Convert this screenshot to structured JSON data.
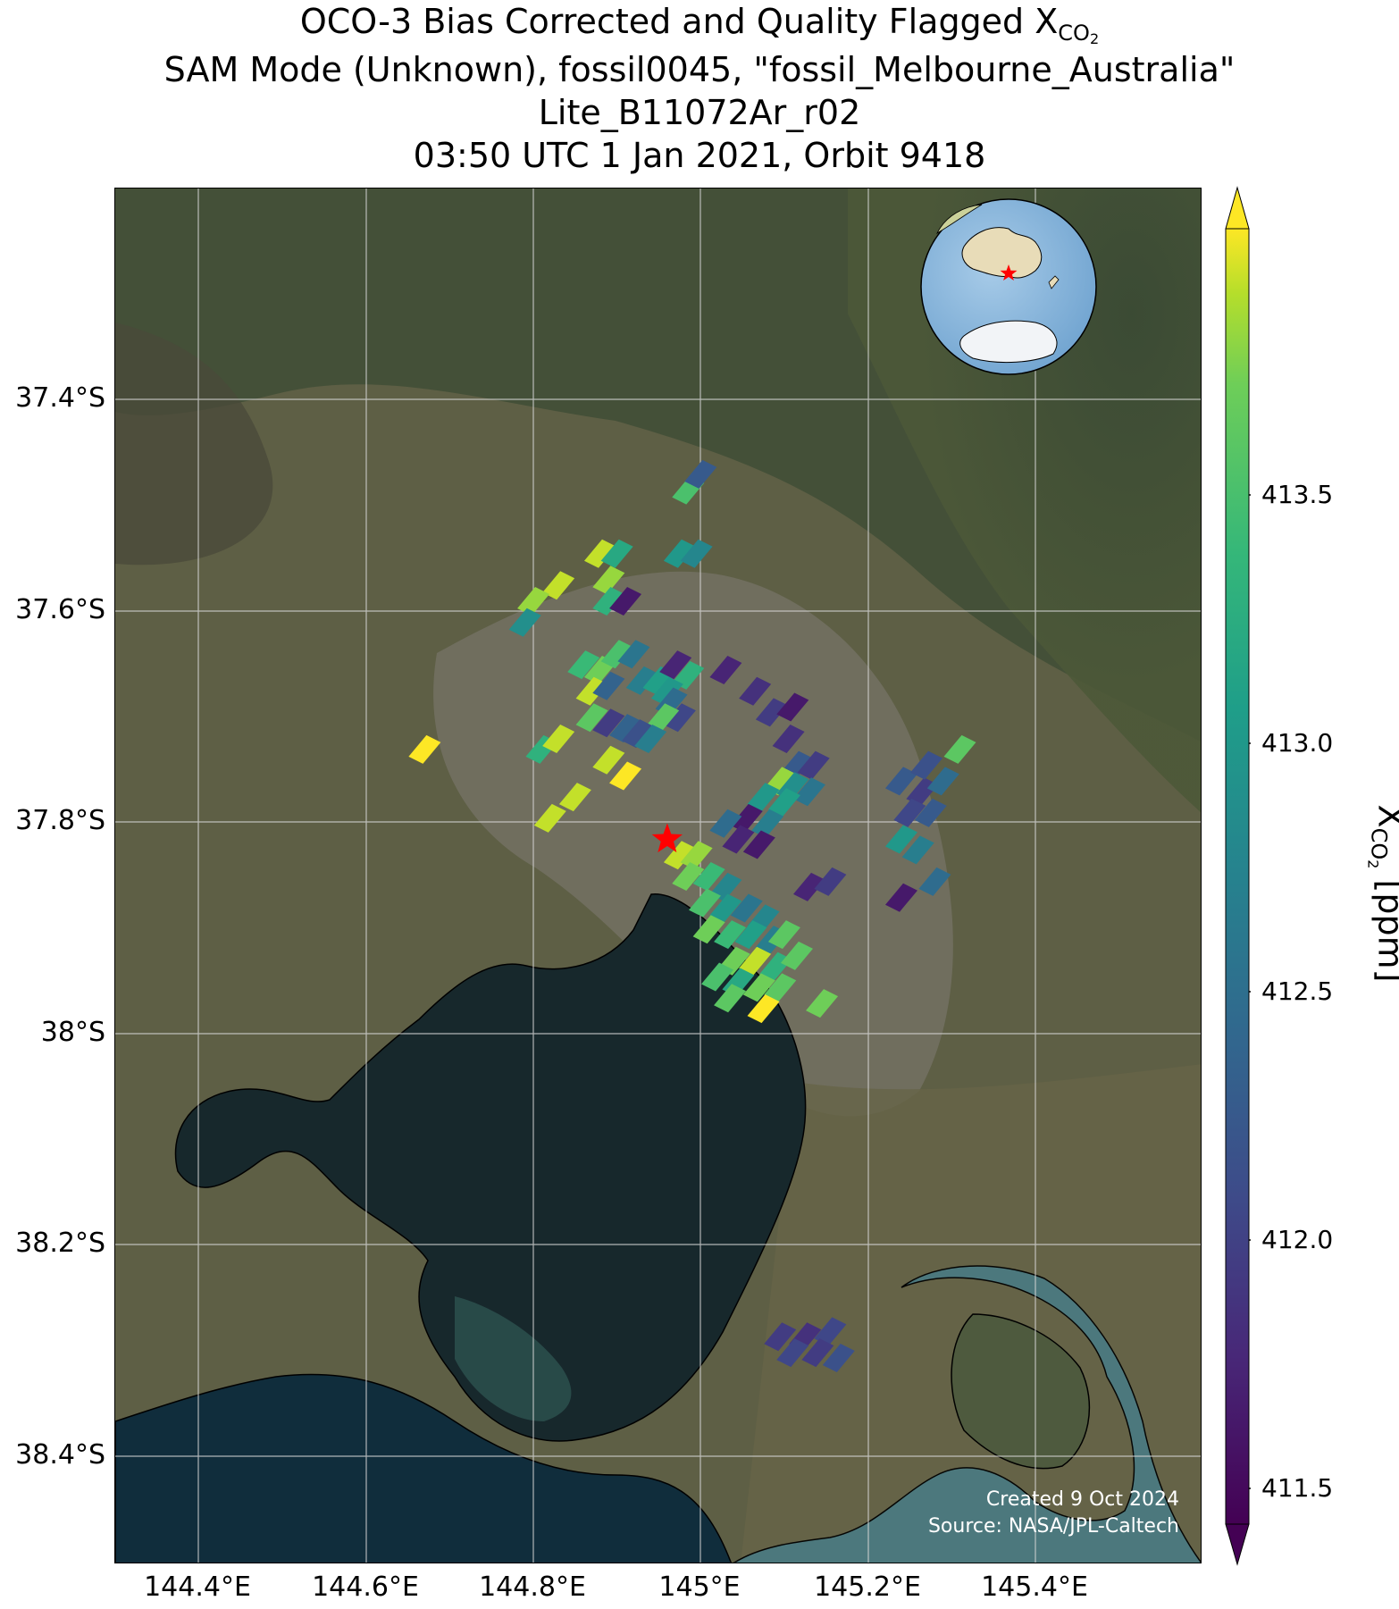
{
  "title": {
    "line1_prefix": "OCO-3 Bias Corrected and Quality Flagged X",
    "line1_sub_main": "CO",
    "line1_sub_sub": "2",
    "line2": "SAM Mode (Unknown), fossil0045, \"fossil_Melbourne_Australia\"",
    "line3": "Lite_B11072Ar_r02",
    "line4": "03:50 UTC 1 Jan 2021, Orbit 9418"
  },
  "axes": {
    "lat_ticks": [
      "37.4°S",
      "37.6°S",
      "37.8°S",
      "38°S",
      "38.2°S",
      "38.4°S"
    ],
    "lon_ticks": [
      "144.4°E",
      "144.6°E",
      "144.8°E",
      "145°E",
      "145.2°E",
      "145.4°E"
    ]
  },
  "colorbar": {
    "label_prefix": "X",
    "label_sub_main": "CO",
    "label_sub_sub": "2",
    "label_suffix": " [ppm]",
    "ticks": [
      "413.5",
      "413.0",
      "412.5",
      "412.0",
      "411.5"
    ],
    "colormap": "viridis",
    "range": [
      411.4,
      413.9
    ]
  },
  "credits": {
    "created": "Created 9 Oct 2024",
    "source": "Source: NASA/JPL-Caltech"
  },
  "map": {
    "extent": {
      "lon": [
        144.3,
        145.6
      ],
      "lat": [
        -38.5,
        -37.2
      ]
    },
    "target_marker_color": "#ff0000",
    "target": {
      "lon": 144.96,
      "lat": -37.815
    },
    "inset": "globe-australia-locator"
  },
  "chart_data": {
    "type": "heatmap",
    "variable": "XCO2",
    "soundings": [
      {
        "lon": 144.985,
        "lat": -37.485,
        "v": 413.4
      },
      {
        "lon": 145.0,
        "lat": -37.47,
        "v": 412.2
      },
      {
        "lon": 144.975,
        "lat": -37.545,
        "v": 412.9
      },
      {
        "lon": 144.995,
        "lat": -37.545,
        "v": 412.7
      },
      {
        "lon": 144.88,
        "lat": -37.545,
        "v": 413.8
      },
      {
        "lon": 144.9,
        "lat": -37.545,
        "v": 413.1
      },
      {
        "lon": 144.89,
        "lat": -37.57,
        "v": 413.7
      },
      {
        "lon": 144.89,
        "lat": -37.59,
        "v": 413.2
      },
      {
        "lon": 144.91,
        "lat": -37.59,
        "v": 411.6
      },
      {
        "lon": 144.83,
        "lat": -37.575,
        "v": 413.8
      },
      {
        "lon": 144.8,
        "lat": -37.59,
        "v": 413.7
      },
      {
        "lon": 144.79,
        "lat": -37.61,
        "v": 412.8
      },
      {
        "lon": 144.86,
        "lat": -37.65,
        "v": 413.3
      },
      {
        "lon": 144.88,
        "lat": -37.655,
        "v": 413.6
      },
      {
        "lon": 144.9,
        "lat": -37.64,
        "v": 413.4
      },
      {
        "lon": 144.92,
        "lat": -37.64,
        "v": 412.5
      },
      {
        "lon": 144.87,
        "lat": -37.675,
        "v": 413.8
      },
      {
        "lon": 144.89,
        "lat": -37.67,
        "v": 412.3
      },
      {
        "lon": 144.93,
        "lat": -37.665,
        "v": 412.6
      },
      {
        "lon": 144.95,
        "lat": -37.665,
        "v": 413.0
      },
      {
        "lon": 144.97,
        "lat": -37.65,
        "v": 411.7
      },
      {
        "lon": 144.985,
        "lat": -37.66,
        "v": 413.2
      },
      {
        "lon": 144.96,
        "lat": -37.675,
        "v": 412.9
      },
      {
        "lon": 144.965,
        "lat": -37.685,
        "v": 412.4
      },
      {
        "lon": 144.975,
        "lat": -37.7,
        "v": 412.0
      },
      {
        "lon": 144.955,
        "lat": -37.7,
        "v": 413.5
      },
      {
        "lon": 144.87,
        "lat": -37.7,
        "v": 413.5
      },
      {
        "lon": 144.89,
        "lat": -37.705,
        "v": 411.9
      },
      {
        "lon": 144.91,
        "lat": -37.71,
        "v": 412.3
      },
      {
        "lon": 144.925,
        "lat": -37.715,
        "v": 412.1
      },
      {
        "lon": 144.94,
        "lat": -37.72,
        "v": 412.6
      },
      {
        "lon": 145.03,
        "lat": -37.655,
        "v": 411.7
      },
      {
        "lon": 145.065,
        "lat": -37.675,
        "v": 411.8
      },
      {
        "lon": 145.085,
        "lat": -37.695,
        "v": 411.9
      },
      {
        "lon": 145.11,
        "lat": -37.69,
        "v": 411.6
      },
      {
        "lon": 145.105,
        "lat": -37.72,
        "v": 411.8
      },
      {
        "lon": 145.115,
        "lat": -37.745,
        "v": 412.2
      },
      {
        "lon": 145.135,
        "lat": -37.745,
        "v": 411.9
      },
      {
        "lon": 145.095,
        "lat": -37.76,
        "v": 413.7
      },
      {
        "lon": 145.11,
        "lat": -37.765,
        "v": 412.8
      },
      {
        "lon": 145.13,
        "lat": -37.77,
        "v": 412.5
      },
      {
        "lon": 145.075,
        "lat": -37.775,
        "v": 412.9
      },
      {
        "lon": 145.1,
        "lat": -37.78,
        "v": 413.0
      },
      {
        "lon": 145.055,
        "lat": -37.795,
        "v": 411.6
      },
      {
        "lon": 145.08,
        "lat": -37.8,
        "v": 412.6
      },
      {
        "lon": 145.045,
        "lat": -37.815,
        "v": 411.7
      },
      {
        "lon": 145.07,
        "lat": -37.82,
        "v": 411.6
      },
      {
        "lon": 145.03,
        "lat": -37.8,
        "v": 412.4
      },
      {
        "lon": 145.13,
        "lat": -37.86,
        "v": 411.7
      },
      {
        "lon": 145.155,
        "lat": -37.855,
        "v": 411.9
      },
      {
        "lon": 144.81,
        "lat": -37.73,
        "v": 413.2
      },
      {
        "lon": 144.83,
        "lat": -37.72,
        "v": 413.8
      },
      {
        "lon": 144.89,
        "lat": -37.74,
        "v": 413.8
      },
      {
        "lon": 144.91,
        "lat": -37.755,
        "v": 413.9
      },
      {
        "lon": 144.85,
        "lat": -37.775,
        "v": 413.8
      },
      {
        "lon": 144.82,
        "lat": -37.795,
        "v": 413.8
      },
      {
        "lon": 144.67,
        "lat": -37.73,
        "v": 413.9
      },
      {
        "lon": 145.24,
        "lat": -37.76,
        "v": 412.2
      },
      {
        "lon": 145.265,
        "lat": -37.77,
        "v": 411.9
      },
      {
        "lon": 145.29,
        "lat": -37.76,
        "v": 412.4
      },
      {
        "lon": 145.31,
        "lat": -37.73,
        "v": 413.5
      },
      {
        "lon": 145.27,
        "lat": -37.745,
        "v": 412.1
      },
      {
        "lon": 145.25,
        "lat": -37.79,
        "v": 412.0
      },
      {
        "lon": 145.275,
        "lat": -37.79,
        "v": 412.2
      },
      {
        "lon": 145.24,
        "lat": -37.815,
        "v": 412.9
      },
      {
        "lon": 145.26,
        "lat": -37.825,
        "v": 412.6
      },
      {
        "lon": 145.28,
        "lat": -37.855,
        "v": 412.4
      },
      {
        "lon": 145.24,
        "lat": -37.87,
        "v": 411.6
      },
      {
        "lon": 144.975,
        "lat": -37.83,
        "v": 413.8
      },
      {
        "lon": 144.995,
        "lat": -37.83,
        "v": 413.7
      },
      {
        "lon": 144.985,
        "lat": -37.85,
        "v": 413.6
      },
      {
        "lon": 145.01,
        "lat": -37.85,
        "v": 413.3
      },
      {
        "lon": 145.03,
        "lat": -37.86,
        "v": 412.7
      },
      {
        "lon": 145.005,
        "lat": -37.875,
        "v": 413.4
      },
      {
        "lon": 145.03,
        "lat": -37.88,
        "v": 412.9
      },
      {
        "lon": 145.055,
        "lat": -37.88,
        "v": 412.5
      },
      {
        "lon": 145.075,
        "lat": -37.89,
        "v": 412.7
      },
      {
        "lon": 145.01,
        "lat": -37.9,
        "v": 413.6
      },
      {
        "lon": 145.035,
        "lat": -37.905,
        "v": 413.3
      },
      {
        "lon": 145.06,
        "lat": -37.905,
        "v": 413.0
      },
      {
        "lon": 145.085,
        "lat": -37.91,
        "v": 412.6
      },
      {
        "lon": 145.1,
        "lat": -37.905,
        "v": 413.5
      },
      {
        "lon": 145.04,
        "lat": -37.93,
        "v": 413.6
      },
      {
        "lon": 145.065,
        "lat": -37.93,
        "v": 413.8
      },
      {
        "lon": 145.09,
        "lat": -37.935,
        "v": 413.2
      },
      {
        "lon": 145.115,
        "lat": -37.925,
        "v": 413.5
      },
      {
        "lon": 145.02,
        "lat": -37.945,
        "v": 413.4
      },
      {
        "lon": 145.045,
        "lat": -37.95,
        "v": 413.1
      },
      {
        "lon": 145.07,
        "lat": -37.955,
        "v": 413.6
      },
      {
        "lon": 145.095,
        "lat": -37.955,
        "v": 413.5
      },
      {
        "lon": 145.035,
        "lat": -37.965,
        "v": 413.5
      },
      {
        "lon": 145.075,
        "lat": -37.975,
        "v": 413.9
      },
      {
        "lon": 145.145,
        "lat": -37.97,
        "v": 413.6
      },
      {
        "lon": 145.095,
        "lat": -38.285,
        "v": 411.9
      },
      {
        "lon": 145.125,
        "lat": -38.285,
        "v": 411.8
      },
      {
        "lon": 145.155,
        "lat": -38.28,
        "v": 412.0
      },
      {
        "lon": 145.11,
        "lat": -38.3,
        "v": 412.0
      },
      {
        "lon": 145.14,
        "lat": -38.3,
        "v": 411.9
      },
      {
        "lon": 145.165,
        "lat": -38.305,
        "v": 412.1
      }
    ]
  }
}
